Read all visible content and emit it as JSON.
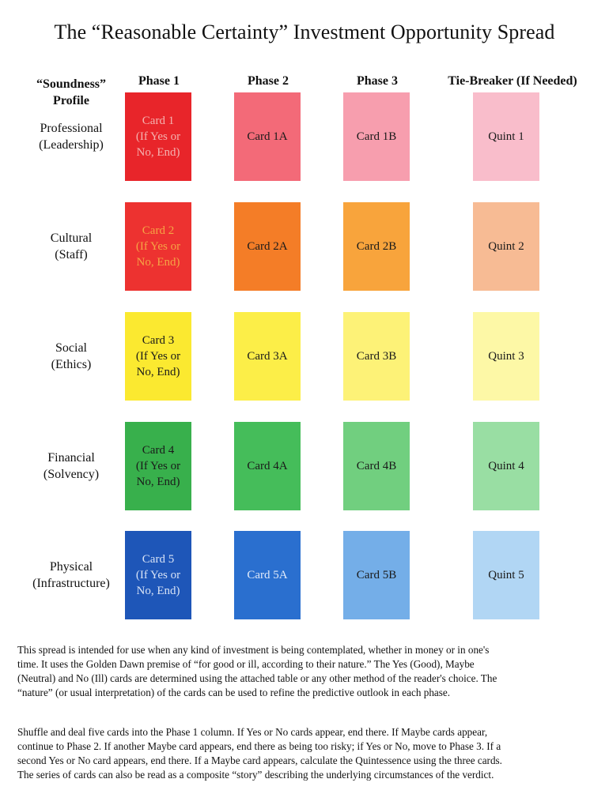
{
  "title": "The “Reasonable Certainty” Investment Opportunity Spread",
  "profile_header": [
    "“Soundness”",
    "Profile"
  ],
  "columns": [
    "Phase 1",
    "Phase 2",
    "Phase 3",
    "Tie-Breaker (If Needed)"
  ],
  "rows": [
    {
      "label": [
        "Professional",
        "(Leadership)"
      ],
      "cards": [
        {
          "lines": [
            "Card 1",
            "(If Yes or",
            "No, End)"
          ],
          "bg": "#e8252a",
          "fg": "#f4b3b0"
        },
        {
          "lines": [
            "Card 1A"
          ],
          "bg": "#f36a78",
          "fg": "#1a1a1a"
        },
        {
          "lines": [
            "Card 1B"
          ],
          "bg": "#f79eae",
          "fg": "#1a1a1a"
        },
        {
          "lines": [
            "Quint 1"
          ],
          "bg": "#f9bdcb",
          "fg": "#1a1a1a"
        }
      ]
    },
    {
      "label": [
        "Cultural",
        "(Staff)"
      ],
      "cards": [
        {
          "lines": [
            "Card 2",
            "(If Yes or",
            "No, End)"
          ],
          "bg": "#ed3230",
          "fg": "#f5a545"
        },
        {
          "lines": [
            "Card 2A"
          ],
          "bg": "#f47d27",
          "fg": "#1a1a1a"
        },
        {
          "lines": [
            "Card 2B"
          ],
          "bg": "#f8a43c",
          "fg": "#1a1a1a"
        },
        {
          "lines": [
            "Quint 2"
          ],
          "bg": "#f7bb94",
          "fg": "#1a1a1a"
        }
      ]
    },
    {
      "label": [
        "Social",
        "(Ethics)"
      ],
      "cards": [
        {
          "lines": [
            "Card 3",
            "(If Yes or",
            "No, End)"
          ],
          "bg": "#fbe930",
          "fg": "#1a1a1a"
        },
        {
          "lines": [
            "Card 3A"
          ],
          "bg": "#fcee48",
          "fg": "#1a1a1a"
        },
        {
          "lines": [
            "Card 3B"
          ],
          "bg": "#fdf277",
          "fg": "#1a1a1a"
        },
        {
          "lines": [
            "Quint 3"
          ],
          "bg": "#fdf8a6",
          "fg": "#1a1a1a"
        }
      ]
    },
    {
      "label": [
        "Financial",
        "(Solvency)"
      ],
      "cards": [
        {
          "lines": [
            "Card 4",
            "(If Yes or",
            "No, End)"
          ],
          "bg": "#38b04c",
          "fg": "#1a1a1a"
        },
        {
          "lines": [
            "Card 4A"
          ],
          "bg": "#45bd5a",
          "fg": "#1a1a1a"
        },
        {
          "lines": [
            "Card 4B"
          ],
          "bg": "#71cf7f",
          "fg": "#1a1a1a"
        },
        {
          "lines": [
            "Quint 4"
          ],
          "bg": "#99dea3",
          "fg": "#1a1a1a"
        }
      ]
    },
    {
      "label": [
        "Physical",
        "(Infrastructure)"
      ],
      "cards": [
        {
          "lines": [
            "Card 5",
            "(If Yes or",
            "No, End)"
          ],
          "bg": "#1e56b8",
          "fg": "#d8e3f6"
        },
        {
          "lines": [
            "Card 5A"
          ],
          "bg": "#2a6fcf",
          "fg": "#e2ebfa"
        },
        {
          "lines": [
            "Card 5B"
          ],
          "bg": "#74aee8",
          "fg": "#1a1a1a"
        },
        {
          "lines": [
            "Quint 5"
          ],
          "bg": "#b1d6f4",
          "fg": "#1a1a1a"
        }
      ]
    }
  ],
  "paragraph1": [
    "This spread is intended for use when any kind of investment is being contemplated, whether in money or in one's",
    "time. It uses the Golden Dawn premise of “for good or ill, according to their nature.” The Yes (Good), Maybe",
    "(Neutral) and No (Ill) cards are determined using the attached table or any other method of the reader's choice. The",
    "“nature” (or usual interpretation) of the cards can be used to refine the predictive outlook in each phase."
  ],
  "paragraph2": [
    "Shuffle and deal five cards into the Phase 1 column. If Yes or No cards appear, end there. If Maybe cards appear,",
    "continue to Phase 2. If another Maybe card appears, end there as being too risky; if Yes or No, move to Phase 3.  If a",
    "second Yes or No card appears, end there. If a Maybe card appears, calculate the Quintessence using the three cards.",
    "The series of cards can also be read as a composite “story” describing the underlying circumstances of the verdict."
  ]
}
